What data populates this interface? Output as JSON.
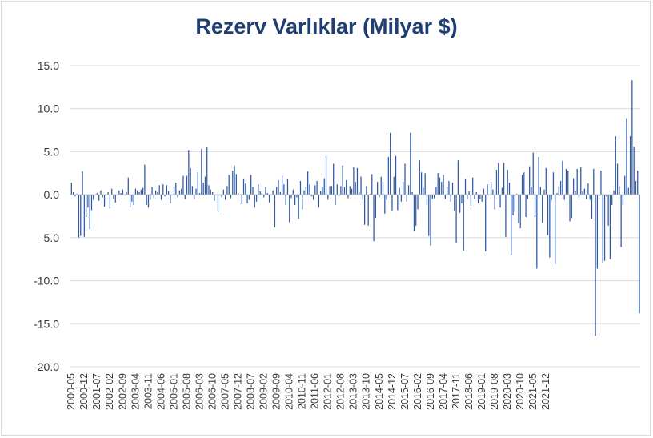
{
  "chart_data": {
    "type": "bar",
    "title": "Rezerv Varlıklar (Milyar $)",
    "xlabel": "",
    "ylabel": "",
    "ylim": [
      -20,
      15
    ],
    "yticks": [
      "15.0",
      "10.0",
      "5.0",
      "0.0",
      "-5.0",
      "-10.0",
      "-15.0",
      "-20.0"
    ],
    "grid": true,
    "legend": "none",
    "bar_color": "#2e5aa8",
    "start": "2000-05",
    "end": "2021-12",
    "tick_labels": [
      "2000-05",
      "2000-12",
      "2001-07",
      "2002-02",
      "2002-09",
      "2003-04",
      "2003-11",
      "2004-06",
      "2005-01",
      "2005-08",
      "2006-03",
      "2006-10",
      "2007-05",
      "2007-12",
      "2008-07",
      "2009-02",
      "2009-09",
      "2010-04",
      "2010-11",
      "2011-06",
      "2012-01",
      "2012-08",
      "2013-03",
      "2013-10",
      "2014-05",
      "2014-12",
      "2015-07",
      "2016-02",
      "2016-09",
      "2017-04",
      "2017-11",
      "2018-06",
      "2019-01",
      "2019-08",
      "2020-03",
      "2020-10",
      "2021-05",
      "2021-12"
    ],
    "values": [
      1.4,
      0.3,
      -0.2,
      0.1,
      -5.0,
      -4.8,
      2.7,
      -4.9,
      -2.6,
      -1.5,
      -4.0,
      -1.8,
      -0.6,
      0.0,
      0.2,
      -0.7,
      0.5,
      -0.3,
      -1.4,
      0.0,
      0.3,
      -1.6,
      0.7,
      -0.5,
      -0.9,
      0.0,
      0.5,
      0.2,
      0.6,
      0.0,
      0.3,
      2.0,
      -1.5,
      -0.8,
      -1.2,
      0.7,
      0.5,
      0.3,
      0.6,
      0.8,
      3.5,
      -1.2,
      -1.5,
      -0.6,
      0.9,
      -0.4,
      0.5,
      0.3,
      1.1,
      -0.6,
      1.2,
      -0.2,
      1.1,
      0.4,
      -1.0,
      0.0,
      1.0,
      1.4,
      -0.3,
      0.5,
      0.7,
      2.2,
      -0.5,
      2.2,
      5.2,
      3.1,
      1.0,
      -0.5,
      0.7,
      2.6,
      0.2,
      5.3,
      1.4,
      2.1,
      5.5,
      1.1,
      0.6,
      0.3,
      -0.7,
      0.0,
      -2.0,
      0.0,
      -0.3,
      0.6,
      -0.6,
      1.0,
      2.3,
      -0.4,
      2.8,
      3.4,
      2.4,
      0.2,
      0.0,
      -1.1,
      1.8,
      1.3,
      -1.0,
      -0.6,
      2.3,
      0.9,
      -1.5,
      -0.8,
      1.2,
      0.4,
      0.2,
      -0.3,
      0.9,
      0.2,
      -0.9,
      0.0,
      0.5,
      -3.8,
      0.9,
      1.7,
      0.3,
      2.2,
      1.2,
      -1.2,
      1.8,
      -3.2,
      -0.4,
      0.6,
      -1.2,
      -0.3,
      -2.8,
      1.6,
      -1.7,
      0.5,
      0.9,
      2.7,
      1.2,
      -0.2,
      -0.6,
      1.1,
      1.6,
      -1.5,
      0.4,
      0.9,
      1.9,
      4.5,
      -0.6,
      1.0,
      1.0,
      3.6,
      -1.2,
      1.2,
      -0.2,
      1.0,
      3.4,
      0.9,
      1.7,
      -0.4,
      1.0,
      0.7,
      3.2,
      1.5,
      3.1,
      0.3,
      2.1,
      -0.6,
      -3.5,
      1.0,
      -3.6,
      0.1,
      2.4,
      -5.4,
      -2.7,
      1.5,
      -0.3,
      2.1,
      1.5,
      -2.2,
      -0.6,
      4.4,
      7.2,
      -1.9,
      2.1,
      4.5,
      -1.8,
      0.8,
      -0.8,
      1.5,
      3.6,
      -0.8,
      1.1,
      7.2,
      0.3,
      -4.2,
      -3.6,
      -1.7,
      4.0,
      2.6,
      0.8,
      2.5,
      -1.2,
      -4.8,
      -5.9,
      -0.5,
      -0.4,
      0.9,
      2.5,
      2.0,
      1.5,
      2.3,
      -0.5,
      0.9,
      1.6,
      -0.8,
      1.4,
      -1.9,
      -5.6,
      4.0,
      -2.1,
      -1.0,
      -6.5,
      1.8,
      -0.5,
      0.4,
      -1.3,
      2.0,
      -0.5,
      0.3,
      -1.0,
      -0.5,
      -0.8,
      0.7,
      -6.6,
      1.2,
      0.0,
      1.5,
      0.6,
      -1.7,
      2.9,
      3.7,
      -1.5,
      0.8,
      3.7,
      -4.9,
      2.9,
      1.4,
      -7.0,
      -2.4,
      -2.0,
      0.1,
      -3.3,
      -3.9,
      2.3,
      2.6,
      -2.6,
      -0.5,
      3.3,
      0.9,
      4.9,
      -2.6,
      -8.6,
      4.4,
      0.9,
      -3.3,
      0.6,
      3.1,
      -4.7,
      -7.3,
      -0.6,
      2.6,
      -8.1,
      0.2,
      1.0,
      1.6,
      3.9,
      -0.6,
      3.0,
      2.8,
      -3.1,
      -2.7,
      1.9,
      0.4,
      3.0,
      -0.5,
      3.2,
      0.4,
      0.7,
      -0.5,
      1.3,
      -0.6,
      -2.8,
      3.0,
      -16.4,
      -8.6,
      -0.2,
      2.8,
      -7.9,
      -7.7,
      -0.2,
      -3.6,
      -7.5,
      -1.2,
      0.5,
      6.8,
      3.6,
      1.0,
      -6.1,
      -1.2,
      2.2,
      8.9,
      0.8,
      6.8,
      13.3,
      5.6,
      1.6,
      2.8,
      -13.8
    ]
  }
}
